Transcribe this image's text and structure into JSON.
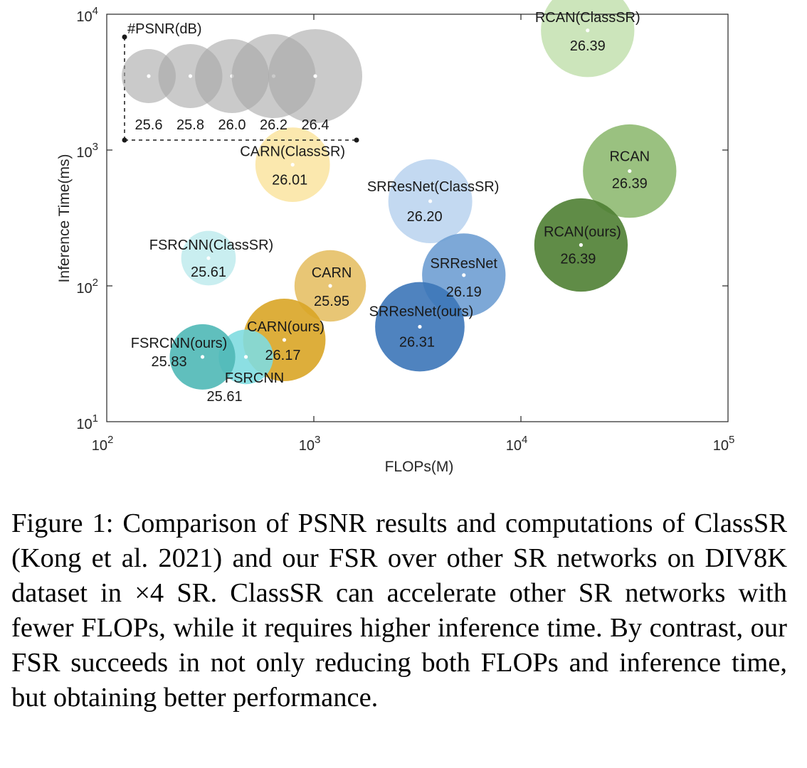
{
  "chart_data": {
    "type": "scatter",
    "subtype": "bubble",
    "xlabel": "FLOPs(M)",
    "ylabel": "Inference Time(ms)",
    "xscale": "log",
    "yscale": "log",
    "xlim": [
      100,
      100000
    ],
    "ylim": [
      10,
      10000
    ],
    "x_ticks": [
      {
        "base": "10",
        "exp": "2"
      },
      {
        "base": "10",
        "exp": "3"
      },
      {
        "base": "10",
        "exp": "4"
      },
      {
        "base": "10",
        "exp": "5"
      }
    ],
    "y_ticks": [
      {
        "base": "10",
        "exp": "1"
      },
      {
        "base": "10",
        "exp": "2"
      },
      {
        "base": "10",
        "exp": "3"
      },
      {
        "base": "10",
        "exp": "4"
      }
    ],
    "size_encoding": "PSNR",
    "size_legend": {
      "title": "#PSNR(dB)",
      "values": [
        "25.6",
        "25.8",
        "26.0",
        "26.2",
        "26.4"
      ]
    },
    "points": [
      {
        "name": "RCAN(ClassSR)",
        "psnr": "26.39",
        "flops": 21000,
        "time": 7600,
        "color": "#c6e2b4"
      },
      {
        "name": "RCAN",
        "psnr": "26.39",
        "flops": 33500,
        "time": 700,
        "color": "#8fba72"
      },
      {
        "name": "RCAN(ours)",
        "psnr": "26.39",
        "flops": 19500,
        "time": 200,
        "color": "#4f7f33"
      },
      {
        "name": "SRResNet(ClassSR)",
        "psnr": "26.20",
        "flops": 3650,
        "time": 420,
        "color": "#bdd5ef"
      },
      {
        "name": "SRResNet",
        "psnr": "26.19",
        "flops": 5300,
        "time": 120,
        "color": "#6f9fd3"
      },
      {
        "name": "SRResNet(ours)",
        "psnr": "26.31",
        "flops": 3250,
        "time": 50,
        "color": "#3c76b8"
      },
      {
        "name": "CARN(ClassSR)",
        "psnr": "26.01",
        "flops": 790,
        "time": 780,
        "color": "#fbe6a5"
      },
      {
        "name": "CARN",
        "psnr": "25.95",
        "flops": 1200,
        "time": 100,
        "color": "#e6c066"
      },
      {
        "name": "CARN(ours)",
        "psnr": "26.17",
        "flops": 720,
        "time": 40,
        "color": "#d9a526"
      },
      {
        "name": "FSRCNN(ClassSR)",
        "psnr": "25.61",
        "flops": 310,
        "time": 160,
        "color": "#c3ecee"
      },
      {
        "name": "FSRCNN",
        "psnr": "25.61",
        "flops": 470,
        "time": 30,
        "color": "#7fdbe0"
      },
      {
        "name": "FSRCNN(ours)",
        "psnr": "25.83",
        "flops": 290,
        "time": 30,
        "color": "#4fb8b6"
      }
    ]
  },
  "caption": "Figure 1: Comparison of PSNR results and computations of ClassSR (Kong et al. 2021) and our FSR over other SR networks on DIV8K dataset in ×4 SR. ClassSR can accelerate other SR networks with fewer FLOPs, while it requires higher inference time. By contrast, our FSR succeeds in not only reducing both FLOPs and inference time, but obtaining better performance."
}
